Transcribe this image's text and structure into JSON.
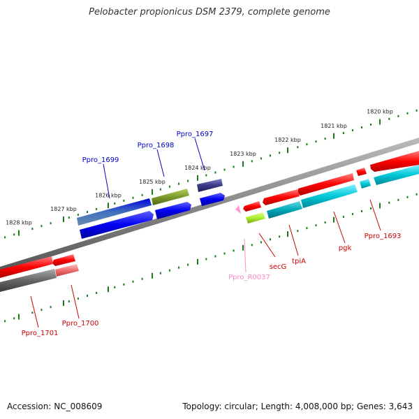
{
  "title": "Pelobacter propionicus DSM 2379, complete genome",
  "footer": {
    "accession": "Accession: NC_008609",
    "summary": "Topology: circular; Length: 4,008,000 bp; Genes: 3,643"
  },
  "ruler_labels": [
    "1820 kbp",
    "1821 kbp",
    "1822 kbp",
    "1823 kbp",
    "1824 kbp",
    "1825 kbp",
    "1826 kbp",
    "1827 kbp",
    "1828 kbp"
  ],
  "genes_top": [
    "Ppro_1697",
    "Ppro_1698",
    "Ppro_1699"
  ],
  "genes_bottom": [
    "Ppro_1693",
    "pgk",
    "tpiA",
    "secG",
    "Ppro_R0037",
    "Ppro_1700",
    "Ppro_1701"
  ],
  "colors": {
    "forward_label": "#0000cc",
    "reverse_label": "#cc0000",
    "rna_label": "#ff88c8",
    "tick": "#1a7a1a",
    "backbone": "#8a8a8a",
    "cds_forward": "#0000ee",
    "cds_reverse": "#ff0000",
    "cds_dark": "#3a3a86",
    "cog_olive": "#7a9a2a",
    "cog_cyan": "#00bbcc",
    "cog_gray": "#666666",
    "rrna": "#ff99cc"
  }
}
